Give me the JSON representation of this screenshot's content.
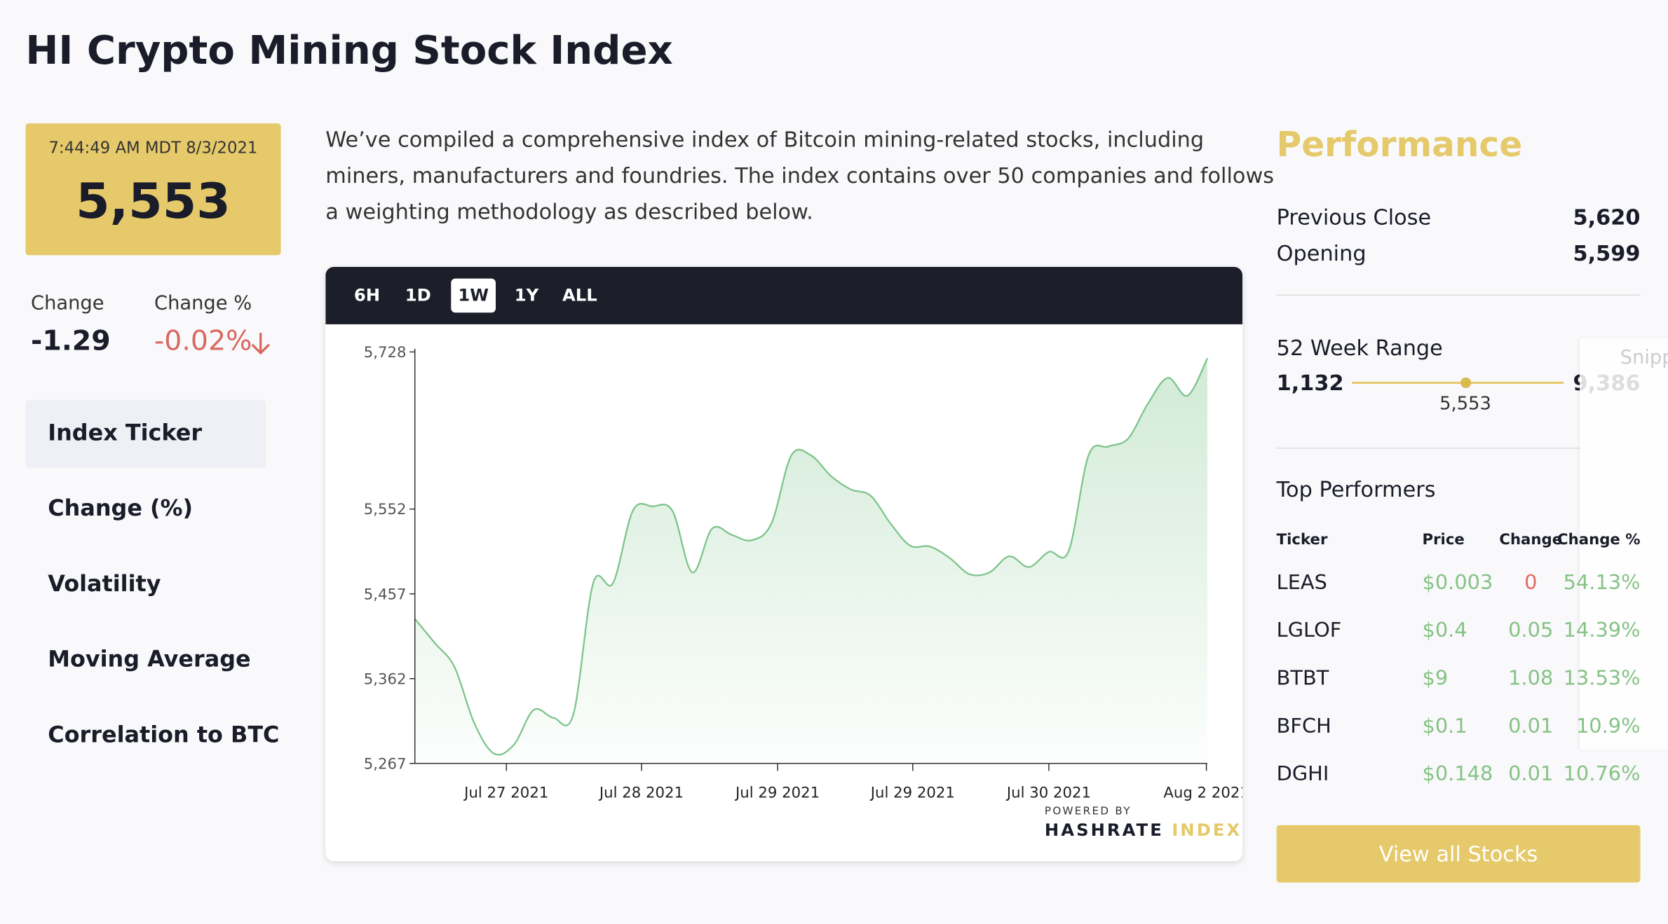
{
  "header": {
    "title": "HI Crypto Mining Stock Index"
  },
  "price_box": {
    "timestamp": "7:44:49 AM MDT 8/3/2021",
    "value": "5,553"
  },
  "change": {
    "label": "Change",
    "value": "-1.29",
    "pct_label": "Change %",
    "pct_value": "-0.02%"
  },
  "sidebar": {
    "items": [
      "Index Ticker",
      "Change (%)",
      "Volatility",
      "Moving Average",
      "Correlation to BTC"
    ],
    "active": 0
  },
  "description": {
    "lines": [
      "We’ve compiled a comprehensive index of Bitcoin mining-related stocks, including",
      "miners, manufacturers and foundries. The index contains over 50 companies and follows",
      "a weighting methodology as described below."
    ]
  },
  "range_buttons": {
    "items": [
      "6H",
      "1D",
      "1W",
      "1Y",
      "ALL"
    ],
    "active": 2
  },
  "chart_data": {
    "type": "line",
    "color": "#7cc48a",
    "values": [
      5429,
      5402,
      5375,
      5312,
      5278,
      5288,
      5327,
      5318,
      5322,
      5469,
      5469,
      5550,
      5555,
      5550,
      5481,
      5530,
      5523,
      5517,
      5536,
      5612,
      5612,
      5589,
      5574,
      5567,
      5536,
      5511,
      5510,
      5497,
      5479,
      5481,
      5499,
      5487,
      5504,
      5505,
      5612,
      5622,
      5631,
      5670,
      5699,
      5679,
      5721
    ],
    "xlim": [
      0,
      40
    ],
    "xticks": [
      {
        "value": 4.62,
        "label": "Jul 27 2021"
      },
      {
        "value": 11.44,
        "label": "Jul 28 2021"
      },
      {
        "value": 18.31,
        "label": "Jul 29 2021"
      },
      {
        "value": 25.13,
        "label": "Jul 29 2021"
      },
      {
        "value": 32.0,
        "label": "Jul 30 2021"
      },
      {
        "value": 39.95,
        "label": "Aug 2 2021"
      }
    ],
    "ylim": [
      5267,
      5728
    ],
    "yticks": [
      {
        "value": 5267,
        "label": "5,267"
      },
      {
        "value": 5362,
        "label": "5,362"
      },
      {
        "value": 5457,
        "label": "5,457"
      },
      {
        "value": 5552,
        "label": "5,552"
      },
      {
        "value": 5728,
        "label": "5,728"
      }
    ]
  },
  "branding": {
    "powered_by": "POWERED BY",
    "brand": "HASHRATE",
    "brand_accent": "INDEX"
  },
  "performance": {
    "title": "Performance",
    "rows": [
      {
        "label": "Previous Close",
        "value": "5,620"
      },
      {
        "label": "Opening",
        "value": "5,599"
      }
    ],
    "range_label": "52 Week Range",
    "low": "1,132",
    "high": "9,386",
    "current": "5,553"
  },
  "top_performers": {
    "title": "Top Performers",
    "columns": [
      "Ticker",
      "Price",
      "Change",
      "Change %"
    ],
    "rows": [
      [
        "LEAS",
        "$0.003",
        "0",
        "54.13%"
      ],
      [
        "LGLOF",
        "$0.4",
        "0.05",
        "14.39%"
      ],
      [
        "BTBT",
        "$9",
        "1.08",
        "13.53%"
      ],
      [
        "BFCH",
        "$0.1",
        "0.01",
        "10.9%"
      ],
      [
        "DGHI",
        "$0.148",
        "0.01",
        "10.76%"
      ]
    ]
  },
  "button": {
    "label": "View all Stocks"
  },
  "overlay": {
    "label": "Snipp"
  }
}
